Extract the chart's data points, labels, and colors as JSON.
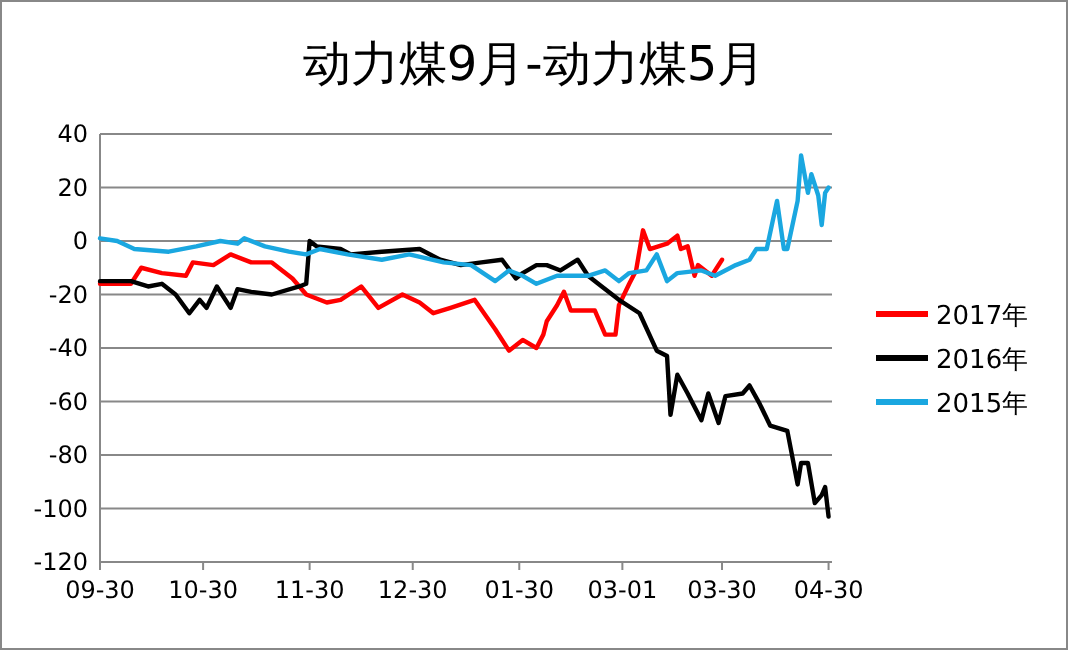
{
  "chart_data": {
    "type": "line",
    "title": "动力煤9月-动力煤5月",
    "xlim": [
      "2016-09-30",
      "2017-05-01"
    ],
    "ylim": [
      -120,
      40
    ],
    "yticks": [
      -120,
      -100,
      -80,
      -60,
      -40,
      -20,
      0,
      20,
      40
    ],
    "xticks": [
      {
        "value": "2016-09-30",
        "label": "09-30"
      },
      {
        "value": "2016-10-30",
        "label": "10-30"
      },
      {
        "value": "2016-11-30",
        "label": "11-30"
      },
      {
        "value": "2016-12-30",
        "label": "12-30"
      },
      {
        "value": "2017-01-30",
        "label": "01-30"
      },
      {
        "value": "2017-03-01",
        "label": "03-01"
      },
      {
        "value": "2017-03-30",
        "label": "03-30"
      },
      {
        "value": "2017-04-30",
        "label": "04-30"
      }
    ],
    "grid": "y",
    "legend": "right",
    "marker": "none",
    "line_style": "solid",
    "series": [
      {
        "name": "2017年",
        "color": "#ff0000",
        "x": [
          "2016-09-30",
          "2016-10-09",
          "2016-10-12",
          "2016-10-18",
          "2016-10-25",
          "2016-10-27",
          "2016-11-02",
          "2016-11-07",
          "2016-11-13",
          "2016-11-19",
          "2016-11-25",
          "2016-11-29",
          "2016-12-05",
          "2016-12-09",
          "2016-12-15",
          "2016-12-20",
          "2016-12-27",
          "2017-01-01",
          "2017-01-05",
          "2017-01-10",
          "2017-01-17",
          "2017-01-23",
          "2017-01-27",
          "2017-01-31",
          "2017-02-04",
          "2017-02-06",
          "2017-02-07",
          "2017-02-10",
          "2017-02-12",
          "2017-02-14",
          "2017-02-15",
          "2017-02-21",
          "2017-02-24",
          "2017-02-27",
          "2017-02-28",
          "2017-03-03",
          "2017-03-05",
          "2017-03-07",
          "2017-03-09",
          "2017-03-14",
          "2017-03-17",
          "2017-03-18",
          "2017-03-20",
          "2017-03-22",
          "2017-03-23",
          "2017-03-27",
          "2017-03-30"
        ],
        "values": [
          -16,
          -16,
          -10,
          -12,
          -13,
          -8,
          -9,
          -5,
          -8,
          -8,
          -14,
          -20,
          -23,
          -22,
          -17,
          -25,
          -20,
          -23,
          -27,
          -25,
          -22,
          -33,
          -41,
          -37,
          -40,
          -35,
          -30,
          -24,
          -19,
          -26,
          -26,
          -26,
          -35,
          -35,
          -24,
          -16,
          -11,
          4,
          -3,
          -1,
          2,
          -3,
          -2,
          -13,
          -9,
          -13,
          -7
        ]
      },
      {
        "name": "2016年",
        "color": "#000000",
        "x": [
          "2016-09-30",
          "2016-10-09",
          "2016-10-14",
          "2016-10-18",
          "2016-10-22",
          "2016-10-26",
          "2016-10-29",
          "2016-10-31",
          "2016-11-03",
          "2016-11-07",
          "2016-11-09",
          "2016-11-13",
          "2016-11-19",
          "2016-11-27",
          "2016-11-29",
          "2016-11-30",
          "2016-12-02",
          "2016-12-09",
          "2016-12-12",
          "2016-12-21",
          "2017-01-01",
          "2017-01-07",
          "2017-01-13",
          "2017-01-19",
          "2017-01-25",
          "2017-01-29",
          "2017-01-31",
          "2017-02-04",
          "2017-02-07",
          "2017-02-11",
          "2017-02-16",
          "2017-02-19",
          "2017-02-23",
          "2017-02-28",
          "2017-03-06",
          "2017-03-11",
          "2017-03-14",
          "2017-03-15",
          "2017-03-17",
          "2017-03-20",
          "2017-03-24",
          "2017-03-26",
          "2017-03-29",
          "2017-03-31",
          "2017-04-05",
          "2017-04-07",
          "2017-04-10",
          "2017-04-13",
          "2017-04-18",
          "2017-04-21",
          "2017-04-22",
          "2017-04-24",
          "2017-04-26",
          "2017-04-28",
          "2017-04-29",
          "2017-04-30"
        ],
        "values": [
          -15,
          -15,
          -17,
          -16,
          -20,
          -27,
          -22,
          -25,
          -17,
          -25,
          -18,
          -19,
          -20,
          -17,
          -16,
          0,
          -2,
          -3,
          -5,
          -4,
          -3,
          -7,
          -9,
          -8,
          -7,
          -14,
          -12,
          -9,
          -9,
          -11,
          -7,
          -13,
          -17,
          -22,
          -27,
          -41,
          -43,
          -65,
          -50,
          -57,
          -67,
          -57,
          -68,
          -58,
          -57,
          -54,
          -61,
          -69,
          -71,
          -91,
          -83,
          -83,
          -98,
          -95,
          -92,
          -103
        ]
      },
      {
        "name": "2015年",
        "color": "#1aa7e0",
        "x": [
          "2016-09-30",
          "2016-10-05",
          "2016-10-10",
          "2016-10-20",
          "2016-10-28",
          "2016-11-04",
          "2016-11-09",
          "2016-11-11",
          "2016-11-17",
          "2016-11-24",
          "2016-11-29",
          "2016-12-03",
          "2016-12-11",
          "2016-12-21",
          "2016-12-29",
          "2017-01-08",
          "2017-01-16",
          "2017-01-23",
          "2017-01-27",
          "2017-01-31",
          "2017-02-04",
          "2017-02-10",
          "2017-02-19",
          "2017-02-24",
          "2017-02-28",
          "2017-03-03",
          "2017-03-08",
          "2017-03-11",
          "2017-03-14",
          "2017-03-17",
          "2017-03-24",
          "2017-03-28",
          "2017-04-03",
          "2017-04-07",
          "2017-04-09",
          "2017-04-12",
          "2017-04-15",
          "2017-04-17",
          "2017-04-18",
          "2017-04-21",
          "2017-04-22",
          "2017-04-24",
          "2017-04-25",
          "2017-04-27",
          "2017-04-28",
          "2017-04-29",
          "2017-04-30"
        ],
        "values": [
          1,
          0,
          -3,
          -4,
          -2,
          0,
          -1,
          1,
          -2,
          -4,
          -5,
          -3,
          -5,
          -7,
          -5,
          -8,
          -9,
          -15,
          -11,
          -13,
          -16,
          -13,
          -13,
          -11,
          -15,
          -12,
          -11,
          -5,
          -15,
          -12,
          -11,
          -13,
          -9,
          -7,
          -3,
          -3,
          15,
          -3,
          -3,
          15,
          32,
          18,
          25,
          17,
          6,
          18,
          20
        ]
      }
    ]
  }
}
